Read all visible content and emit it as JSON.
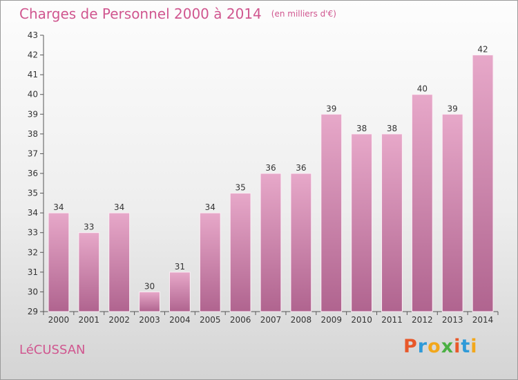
{
  "header": {
    "title": "Charges de Personnel 2000 à 2014",
    "unit": "(en milliers d'€)"
  },
  "footer": {
    "commune": "LéCUSSAN",
    "logo_letters": [
      "P",
      "r",
      "o",
      "x",
      "i",
      "t",
      "i"
    ],
    "logo_colors": [
      "#e8582a",
      "#2f9ad8",
      "#f2a71b",
      "#4bb043",
      "#e8582a",
      "#2f9ad8",
      "#f2a71b"
    ]
  },
  "chart_data": {
    "type": "bar",
    "title": "Charges de Personnel 2000 à 2014",
    "subtitle": "(en milliers d'€)",
    "categories": [
      "2000",
      "2001",
      "2002",
      "2003",
      "2004",
      "2005",
      "2006",
      "2007",
      "2008",
      "2009",
      "2010",
      "2011",
      "2012",
      "2013",
      "2014"
    ],
    "values": [
      34,
      33,
      34,
      30,
      31,
      34,
      35,
      36,
      36,
      39,
      38,
      38,
      40,
      39,
      42
    ],
    "data_labels": [
      "34",
      "33",
      "34",
      "30",
      "31",
      "34",
      "35",
      "36",
      "36",
      "39",
      "38",
      "38",
      "40",
      "39",
      "42"
    ],
    "ylim": [
      29,
      43
    ],
    "yticks": [
      "29",
      "30",
      "31",
      "32",
      "33",
      "34",
      "35",
      "36",
      "37",
      "38",
      "39",
      "40",
      "41",
      "42",
      "43"
    ],
    "xlabel": "",
    "ylabel": "",
    "grid": false,
    "legend": "none",
    "colors": {
      "bar_top": "#e7a8c9",
      "bar_bottom": "#b0648f"
    }
  }
}
